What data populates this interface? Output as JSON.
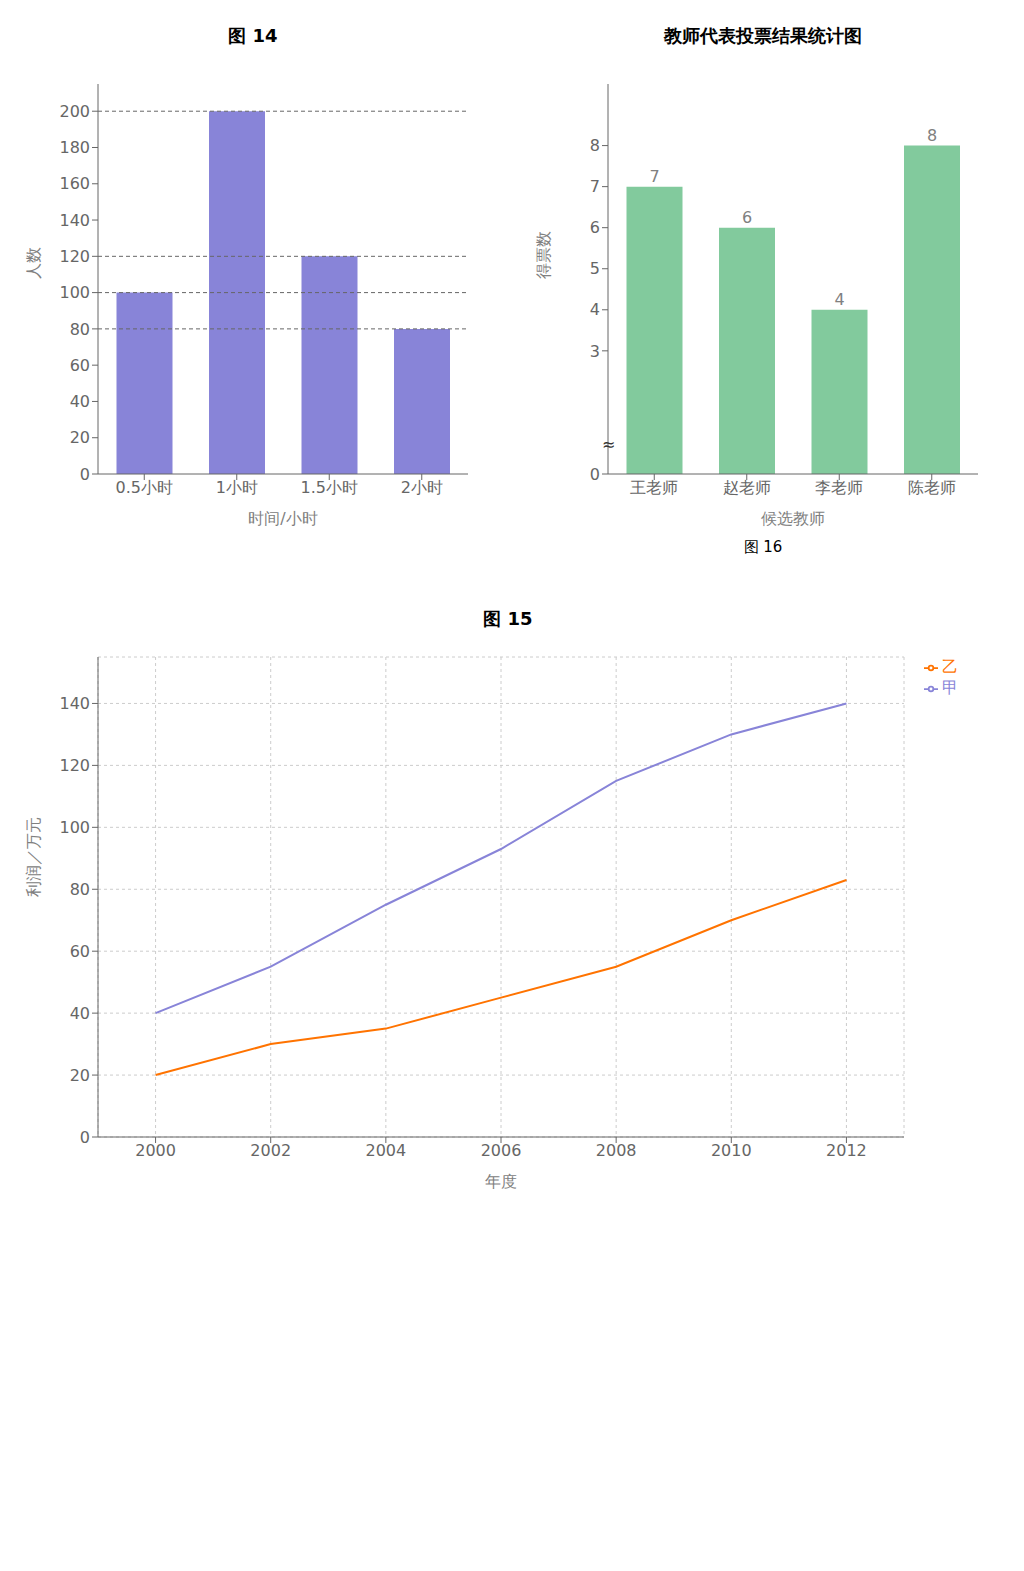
{
  "chart_data": [
    {
      "type": "bar",
      "title": "图 14",
      "categories": [
        "0.5小时",
        "1小时",
        "1.5小时",
        "2小时"
      ],
      "values": [
        100,
        200,
        120,
        80
      ],
      "color": "#8884d8",
      "ylim": [
        0,
        215
      ],
      "yticks": [
        0,
        20,
        40,
        60,
        80,
        100,
        120,
        140,
        160,
        180,
        200
      ],
      "ylabel": "人数",
      "xlabel": "时间/小时"
    },
    {
      "type": "bar",
      "title": "教师代表投票结果统计图",
      "subtitle": "图 16",
      "categories": [
        "王老师",
        "赵老师",
        "李老师",
        "陈老师"
      ],
      "values": [
        7,
        6,
        4,
        8
      ],
      "color": "#82ca9d",
      "ylim": [
        0,
        9.5
      ],
      "yticks": [
        0,
        3,
        4,
        5,
        6,
        7,
        8
      ],
      "ylabel": "得票数",
      "xlabel": "候选教师",
      "data_labels": true,
      "annotations": [
        "≈"
      ]
    },
    {
      "type": "line",
      "title": "图 15",
      "x": [
        2000,
        2002,
        2004,
        2006,
        2008,
        2010,
        2012
      ],
      "series": [
        {
          "name": "甲",
          "color": "#8884d8",
          "values": [
            40,
            55,
            75,
            93,
            115,
            130,
            140
          ]
        },
        {
          "name": "乙",
          "color": "#ff7300",
          "values": [
            20,
            30,
            35,
            45,
            55,
            70,
            83
          ]
        }
      ],
      "xlim": [
        1999,
        2013
      ],
      "xticks": [
        2000,
        2002,
        2004,
        2006,
        2008,
        2010,
        2012
      ],
      "ylim": [
        0,
        155
      ],
      "yticks": [
        0,
        20,
        40,
        60,
        80,
        100,
        120,
        140
      ],
      "ylabel": "利润／万元",
      "xlabel": "年度",
      "grid": true,
      "legend": "upper right"
    }
  ]
}
